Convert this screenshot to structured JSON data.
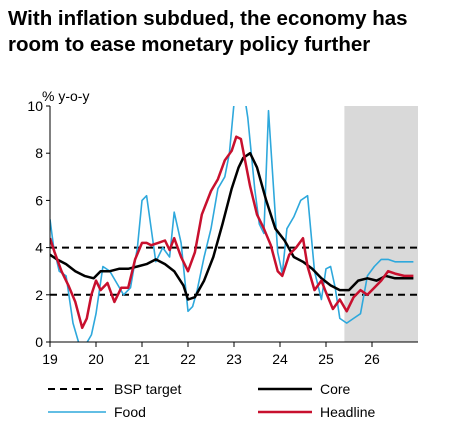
{
  "title_line1": "With inflation subdued, the economy has",
  "title_line2": "room to ease monetary policy further",
  "chart_data": {
    "type": "line",
    "title": "With inflation subdued, the economy has room to ease monetary policy further",
    "ylabel": "% y-o-y",
    "xlabel": "",
    "ylim": [
      0,
      10
    ],
    "xlim": [
      2019.0,
      2027.0
    ],
    "y_ticks": [
      "0",
      "2",
      "4",
      "6",
      "8",
      "10"
    ],
    "x_ticks": [
      {
        "label": "19",
        "x": 2019.0
      },
      {
        "label": "20",
        "x": 2020.0
      },
      {
        "label": "21",
        "x": 2021.0
      },
      {
        "label": "22",
        "x": 2022.0
      },
      {
        "label": "23",
        "x": 2023.0
      },
      {
        "label": "24",
        "x": 2024.0
      },
      {
        "label": "25",
        "x": 2025.0
      },
      {
        "label": "26",
        "x": 2026.0
      }
    ],
    "forecast_shading": {
      "from": 2025.4,
      "to": 2027.0,
      "color": "#d9d9d9"
    },
    "grid": false,
    "legend_position": "bottom",
    "series": [
      {
        "name": "BSP target",
        "style": "dashed",
        "color": "#000000",
        "x": [
          2019.0,
          2027.0
        ],
        "values": [
          4,
          4
        ]
      },
      {
        "name": "",
        "style": "dashed",
        "color": "#000000",
        "x": [
          2019.0,
          2027.0
        ],
        "values": [
          2,
          2
        ]
      },
      {
        "name": "Core",
        "style": "solid",
        "color": "#000000",
        "x": [
          2019.0,
          2019.15,
          2019.35,
          2019.55,
          2019.75,
          2019.95,
          2020.1,
          2020.3,
          2020.5,
          2020.7,
          2020.9,
          2021.1,
          2021.3,
          2021.5,
          2021.7,
          2021.9,
          2022.0,
          2022.15,
          2022.35,
          2022.55,
          2022.75,
          2022.95,
          2023.1,
          2023.2,
          2023.35,
          2023.5,
          2023.7,
          2023.9,
          2024.1,
          2024.3,
          2024.5,
          2024.7,
          2024.9,
          2025.1,
          2025.3,
          2025.5,
          2025.7,
          2025.9,
          2026.1,
          2026.3,
          2026.5,
          2026.7,
          2026.9
        ],
        "values": [
          3.7,
          3.5,
          3.3,
          3.0,
          2.8,
          2.7,
          3.0,
          3.0,
          3.1,
          3.1,
          3.2,
          3.3,
          3.5,
          3.3,
          3.0,
          2.4,
          1.8,
          1.9,
          2.6,
          3.6,
          5.0,
          6.5,
          7.4,
          7.8,
          8.0,
          7.4,
          6.0,
          4.8,
          4.3,
          3.6,
          3.4,
          3.1,
          2.7,
          2.4,
          2.2,
          2.2,
          2.6,
          2.7,
          2.6,
          2.8,
          2.7,
          2.7,
          2.7
        ]
      },
      {
        "name": "Food",
        "style": "solid",
        "color": "#2ea8dc",
        "x": [
          2019.0,
          2019.08,
          2019.2,
          2019.35,
          2019.5,
          2019.62,
          2019.75,
          2019.9,
          2020.0,
          2020.15,
          2020.3,
          2020.45,
          2020.6,
          2020.75,
          2020.9,
          2021.0,
          2021.1,
          2021.2,
          2021.3,
          2021.45,
          2021.6,
          2021.7,
          2021.85,
          2022.0,
          2022.1,
          2022.2,
          2022.35,
          2022.5,
          2022.65,
          2022.8,
          2022.9,
          2023.0,
          2023.05,
          2023.12,
          2023.2,
          2023.3,
          2023.45,
          2023.55,
          2023.65,
          2023.75,
          2023.85,
          2023.95,
          2024.05,
          2024.15,
          2024.3,
          2024.45,
          2024.6,
          2024.75,
          2024.9,
          2025.0,
          2025.1,
          2025.2,
          2025.3,
          2025.45,
          2025.6,
          2025.75,
          2025.9,
          2026.05,
          2026.2,
          2026.35,
          2026.5,
          2026.7,
          2026.9
        ],
        "values": [
          5.2,
          4.0,
          3.0,
          2.8,
          0.8,
          0.0,
          -0.2,
          0.3,
          1.2,
          3.2,
          3.0,
          2.5,
          2.0,
          2.3,
          4.0,
          6.0,
          6.2,
          4.8,
          3.4,
          4.0,
          3.6,
          5.5,
          4.2,
          1.3,
          1.5,
          2.2,
          3.6,
          4.8,
          6.5,
          7.0,
          8.0,
          10.1,
          10.3,
          10.2,
          10.8,
          9.5,
          6.5,
          5.0,
          4.6,
          9.8,
          6.8,
          3.8,
          2.9,
          4.8,
          5.3,
          6.0,
          6.2,
          3.0,
          1.8,
          3.1,
          3.2,
          2.3,
          1.0,
          0.8,
          1.0,
          1.2,
          2.8,
          3.2,
          3.5,
          3.5,
          3.4,
          3.4,
          3.4
        ]
      },
      {
        "name": "Headline",
        "style": "solid",
        "color": "#c8102e",
        "x": [
          2019.0,
          2019.1,
          2019.25,
          2019.4,
          2019.55,
          2019.7,
          2019.8,
          2019.9,
          2020.0,
          2020.1,
          2020.25,
          2020.4,
          2020.55,
          2020.7,
          2020.85,
          2021.0,
          2021.1,
          2021.2,
          2021.35,
          2021.5,
          2021.6,
          2021.7,
          2021.85,
          2022.0,
          2022.15,
          2022.3,
          2022.5,
          2022.65,
          2022.8,
          2022.95,
          2023.05,
          2023.15,
          2023.25,
          2023.35,
          2023.5,
          2023.65,
          2023.8,
          2023.95,
          2024.05,
          2024.2,
          2024.35,
          2024.5,
          2024.6,
          2024.75,
          2024.9,
          2025.0,
          2025.15,
          2025.3,
          2025.45,
          2025.6,
          2025.75,
          2025.9,
          2026.05,
          2026.2,
          2026.35,
          2026.5,
          2026.7,
          2026.9
        ],
        "values": [
          4.4,
          3.8,
          3.0,
          2.4,
          1.7,
          0.6,
          1.0,
          2.0,
          2.6,
          2.2,
          2.5,
          1.7,
          2.3,
          2.3,
          3.5,
          4.2,
          4.2,
          4.1,
          4.2,
          4.3,
          3.9,
          4.4,
          3.6,
          3.0,
          3.8,
          5.4,
          6.4,
          6.9,
          7.7,
          8.1,
          8.7,
          8.6,
          7.6,
          6.6,
          5.4,
          4.8,
          4.1,
          3.0,
          2.8,
          3.7,
          4.0,
          4.4,
          3.2,
          2.2,
          2.6,
          2.1,
          1.4,
          1.8,
          1.3,
          1.9,
          2.2,
          2.0,
          2.3,
          2.6,
          3.0,
          2.9,
          2.8,
          2.8
        ]
      }
    ]
  },
  "legend": {
    "bsp_target": "BSP target",
    "core": "Core",
    "food": "Food",
    "headline": "Headline"
  }
}
